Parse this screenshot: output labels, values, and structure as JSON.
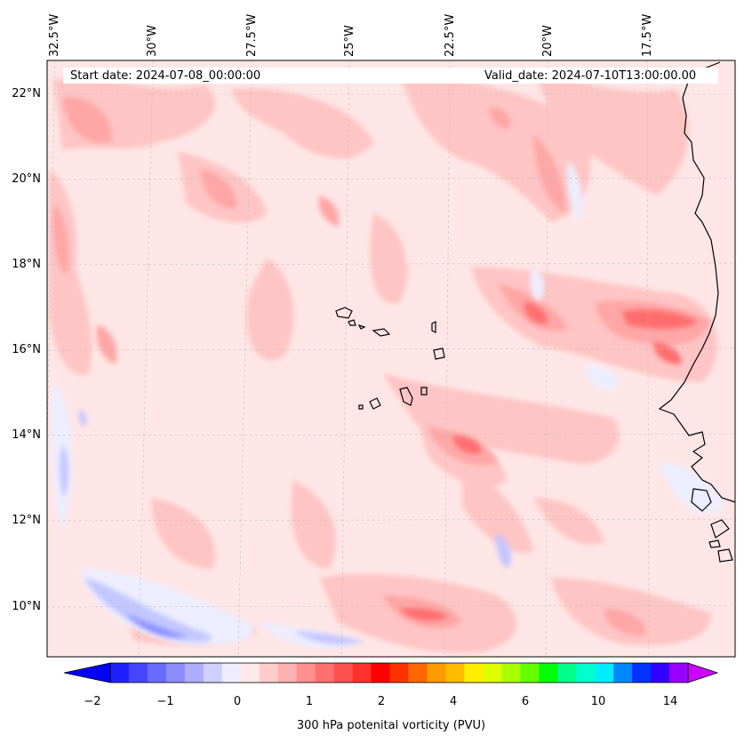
{
  "map": {
    "start_date_text": "Start date: 2024-07-08_00:00:00",
    "valid_date_text": "Valid_date: 2024-07-10T13:00:00.00",
    "longitude_labels": [
      "32.5°W",
      "30°W",
      "27.5°W",
      "25°W",
      "22.5°W",
      "20°W",
      "17.5°W"
    ],
    "latitude_labels": [
      "22°N",
      "20°N",
      "18°N",
      "16°N",
      "14°N",
      "12°N",
      "10°N"
    ],
    "colors": {
      "background_field": "#ffe6e6",
      "light_pink": "#ffc8c8",
      "pink": "#ffaaaa",
      "salmon": "#ff7a7a",
      "red": "#ff4d4d",
      "light_blue": "#eef0ff",
      "blue": "#c6c9ff",
      "mid_blue": "#8f93ff",
      "coast": "#000000"
    }
  },
  "colorbar": {
    "title": "300 hPa potenital vorticity (PVU)",
    "tick_labels": [
      "−2",
      "−1",
      "0",
      "1",
      "2",
      "4",
      "6",
      "10",
      "14"
    ],
    "colors": [
      "#0000ff",
      "#2020ff",
      "#4646ff",
      "#6a6aff",
      "#8c8cff",
      "#aeaeff",
      "#d0d0ff",
      "#eeeeff",
      "#ffe8e8",
      "#ffcccc",
      "#ffb0b0",
      "#ff9090",
      "#ff7070",
      "#ff5050",
      "#ff3030",
      "#ff0000",
      "#ff3300",
      "#ff6600",
      "#ff9900",
      "#ffbb00",
      "#ffee00",
      "#ddff00",
      "#aaff00",
      "#66ff00",
      "#00ff00",
      "#00ff88",
      "#00ffcc",
      "#00eeff",
      "#0088ff",
      "#0033ff",
      "#3300ff",
      "#9900ff",
      "#cc00ff"
    ]
  }
}
